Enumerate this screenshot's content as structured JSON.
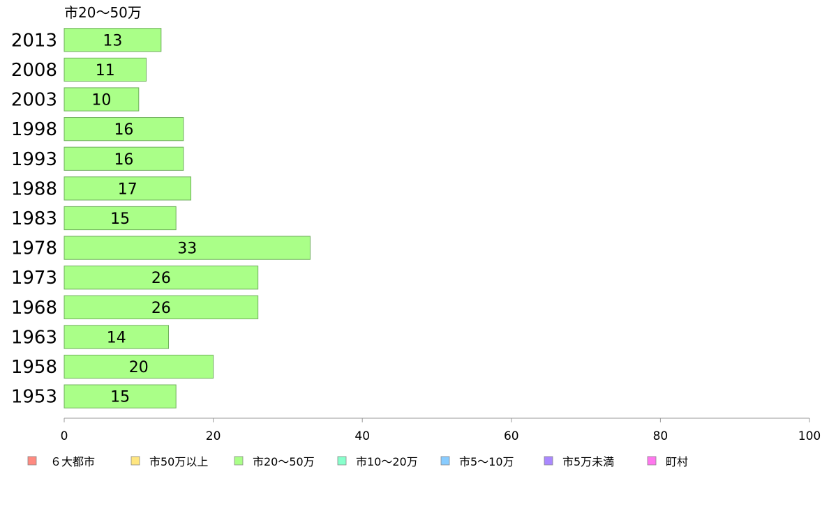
{
  "chart_data": {
    "type": "bar",
    "orientation": "horizontal",
    "series_label": "市20〜50万",
    "categories": [
      "2013",
      "2008",
      "2003",
      "1998",
      "1993",
      "1988",
      "1983",
      "1978",
      "1973",
      "1968",
      "1963",
      "1958",
      "1953"
    ],
    "series": [
      {
        "name": "市20〜50万",
        "color": "#aaff88",
        "values": [
          13,
          11,
          10,
          16,
          16,
          17,
          15,
          33,
          26,
          26,
          14,
          20,
          15
        ]
      }
    ],
    "xlim": [
      0,
      100
    ],
    "x_ticks": [
      0,
      20,
      40,
      60,
      80,
      100
    ],
    "grid": false,
    "legend_position": "bottom",
    "legend": [
      {
        "label": "６大都市",
        "color": "#ff8a80"
      },
      {
        "label": "市50万以上",
        "color": "#ffe680"
      },
      {
        "label": "市20〜50万",
        "color": "#aaff88"
      },
      {
        "label": "市10〜20万",
        "color": "#88ffcc"
      },
      {
        "label": "市5〜10万",
        "color": "#88ccff"
      },
      {
        "label": "市5万未満",
        "color": "#aa88ff"
      },
      {
        "label": "町村",
        "color": "#ff77ee"
      }
    ]
  }
}
